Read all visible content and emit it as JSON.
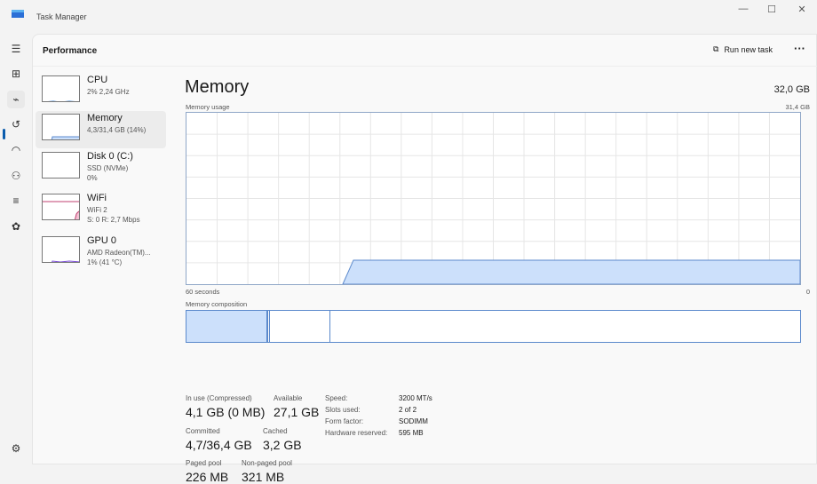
{
  "window": {
    "title": "Task Manager",
    "minimize": "—",
    "maximize": "☐",
    "close": "✕"
  },
  "header": {
    "title": "Performance",
    "run_new_task": "Run new task",
    "more": "···"
  },
  "sidebar": [
    {
      "name": "CPU",
      "sub1": "2% 2,24 GHz",
      "sub2": ""
    },
    {
      "name": "Memory",
      "sub1": "4,3/31,4 GB (14%)",
      "sub2": ""
    },
    {
      "name": "Disk 0 (C:)",
      "sub1": "SSD (NVMe)",
      "sub2": "0%"
    },
    {
      "name": "WiFi",
      "sub1": "WiFi 2",
      "sub2": "S: 0 R: 2,7 Mbps"
    },
    {
      "name": "GPU 0",
      "sub1": "AMD Radeon(TM)...",
      "sub2": "1% (41 °C)"
    }
  ],
  "memory": {
    "title": "Memory",
    "total": "32,0 GB",
    "usage_label": "Memory usage",
    "usage_max": "31,4 GB",
    "time_left": "60 seconds",
    "time_right": "0",
    "composition_label": "Memory composition",
    "usage_fraction": 0.14,
    "accent": "#5b89cc",
    "fill": "#cce0fb"
  },
  "stats": {
    "in_use_label": "In use (Compressed)",
    "in_use": "4,1 GB (0 MB)",
    "available_label": "Available",
    "available": "27,1 GB",
    "committed_label": "Committed",
    "committed": "4,7/36,4 GB",
    "cached_label": "Cached",
    "cached": "3,2 GB",
    "paged_label": "Paged pool",
    "paged": "226 MB",
    "nonpaged_label": "Non-paged pool",
    "nonpaged": "321 MB"
  },
  "hardware": [
    {
      "label": "Speed:",
      "value": "3200 MT/s"
    },
    {
      "label": "Slots used:",
      "value": "2 of 2"
    },
    {
      "label": "Form factor:",
      "value": "SODIMM"
    },
    {
      "label": "Hardware reserved:",
      "value": "595 MB"
    }
  ]
}
